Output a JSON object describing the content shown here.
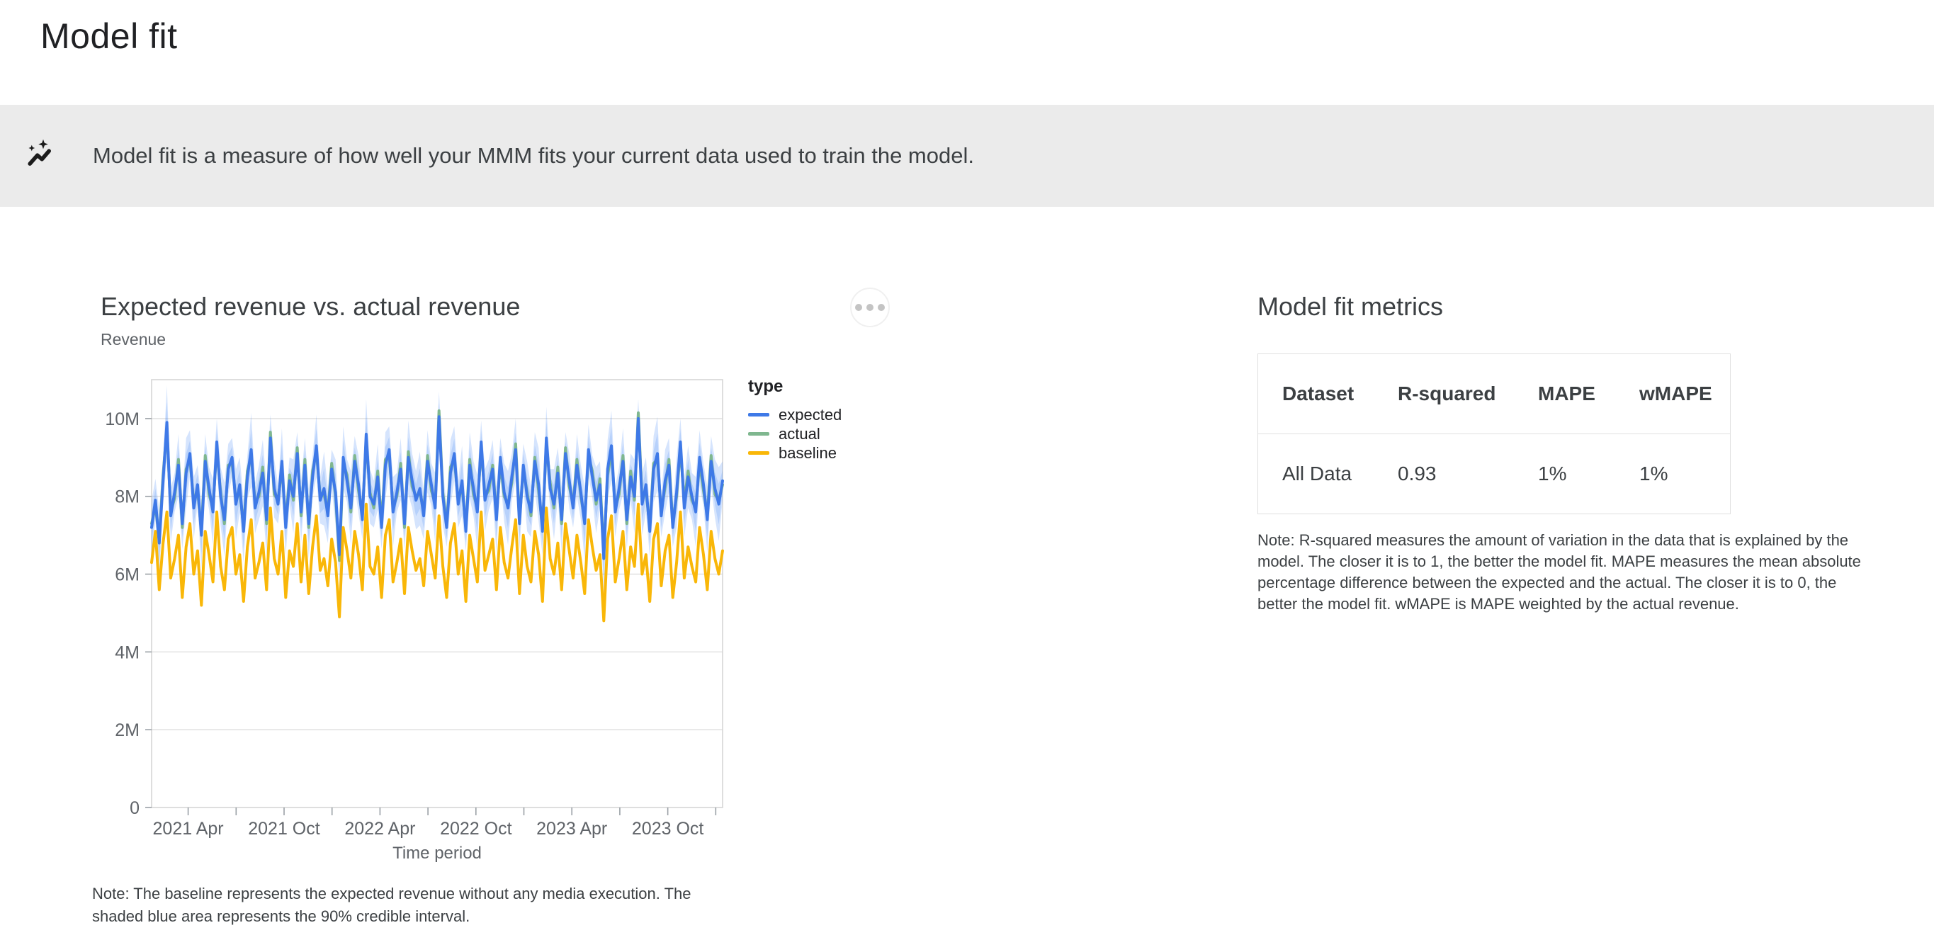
{
  "page": {
    "title": "Model fit"
  },
  "banner": {
    "icon": "auto-graph-icon",
    "text": "Model fit is a measure of how well your MMM fits your current data used to train the model."
  },
  "chart_card": {
    "title": "Expected revenue vs. actual revenue",
    "y_axis_title": "Revenue",
    "menu_label": "more options",
    "note": "Note: The baseline represents the expected revenue without any media execution. The shaded blue area represents the 90% credible interval."
  },
  "metrics_card": {
    "title": "Model fit metrics",
    "table": {
      "headers": [
        "Dataset",
        "R-squared",
        "MAPE",
        "wMAPE"
      ],
      "rows": [
        [
          "All Data",
          "0.93",
          "1%",
          "1%"
        ]
      ]
    },
    "note": "Note: R-squared measures the amount of variation in the data that is explained by the model. The closer it is to 1, the better the model fit. MAPE measures the mean absolute percentage difference between the expected and the actual. The closer it is to 0, the better the model fit. wMAPE is MAPE weighted by the actual revenue."
  },
  "chart_data": {
    "type": "line",
    "title": "Expected revenue vs. actual revenue",
    "xlabel": "Time period",
    "ylabel": "Revenue",
    "unit": "millions",
    "ylim": [
      0,
      11
    ],
    "grid": true,
    "legend_position": "right",
    "legend_title": "type",
    "yticks": [
      {
        "v": 0,
        "label": "0"
      },
      {
        "v": 2,
        "label": "2M"
      },
      {
        "v": 4,
        "label": "4M"
      },
      {
        "v": 6,
        "label": "6M"
      },
      {
        "v": 8,
        "label": "8M"
      },
      {
        "v": 10,
        "label": "10M"
      }
    ],
    "xticks": [
      {
        "f": 0.064,
        "label": "2021 Apr"
      },
      {
        "f": 0.148,
        "label": ""
      },
      {
        "f": 0.232,
        "label": "2021 Oct"
      },
      {
        "f": 0.316,
        "label": ""
      },
      {
        "f": 0.4,
        "label": "2022 Apr"
      },
      {
        "f": 0.484,
        "label": ""
      },
      {
        "f": 0.568,
        "label": "2022 Oct"
      },
      {
        "f": 0.652,
        "label": ""
      },
      {
        "f": 0.736,
        "label": "2023 Apr"
      },
      {
        "f": 0.82,
        "label": ""
      },
      {
        "f": 0.904,
        "label": "2023 Oct"
      },
      {
        "f": 0.988,
        "label": ""
      }
    ],
    "series": [
      {
        "name": "expected",
        "color": "#3E79E7",
        "values": [
          7.2,
          7.9,
          6.8,
          8.4,
          9.9,
          7.5,
          8.1,
          8.8,
          7.3,
          8.6,
          9.1,
          7.7,
          8.3,
          7.0,
          8.9,
          8.2,
          7.6,
          9.4,
          8.0,
          7.4,
          8.7,
          9.0,
          7.8,
          8.3,
          7.1,
          8.5,
          9.2,
          7.7,
          8.1,
          8.6,
          7.4,
          9.5,
          8.2,
          7.8,
          8.9,
          7.2,
          8.4,
          8.0,
          9.1,
          7.6,
          8.8,
          7.3,
          8.5,
          9.3,
          7.9,
          8.2,
          7.5,
          8.7,
          8.1,
          6.5,
          9.0,
          8.4,
          7.7,
          8.9,
          8.3,
          7.4,
          9.6,
          8.0,
          7.8,
          8.5,
          7.2,
          8.8,
          9.2,
          7.6,
          8.1,
          8.7,
          7.3,
          9.0,
          8.4,
          7.9,
          8.2,
          7.5,
          8.9,
          8.3,
          7.7,
          10.05,
          8.0,
          7.2,
          8.6,
          9.1,
          7.8,
          8.4,
          7.1,
          8.8,
          8.2,
          7.6,
          9.4,
          7.9,
          8.3,
          8.7,
          7.4,
          9.0,
          8.1,
          7.7,
          8.5,
          9.2,
          7.3,
          8.8,
          8.0,
          7.6,
          8.9,
          8.3,
          7.1,
          9.5,
          8.2,
          7.8,
          8.6,
          7.4,
          9.1,
          8.4,
          7.7,
          8.8,
          8.1,
          7.3,
          9.2,
          8.5,
          7.9,
          8.3,
          6.4,
          8.7,
          9.3,
          7.6,
          8.2,
          8.9,
          7.4,
          8.5,
          8.0,
          10.0,
          7.8,
          8.3,
          7.1,
          8.7,
          9.1,
          7.5,
          8.4,
          8.8,
          7.2,
          8.1,
          9.4,
          7.7,
          8.5,
          8.0,
          7.6,
          9.0,
          8.3,
          7.4,
          8.9,
          8.2,
          7.8,
          8.4
        ]
      },
      {
        "name": "actual",
        "color": "#7FB78F",
        "values": [
          7.3,
          7.75,
          6.9,
          8.55,
          9.75,
          7.6,
          7.95,
          8.95,
          7.2,
          8.7,
          8.95,
          7.85,
          8.15,
          7.1,
          9.05,
          8.05,
          7.7,
          9.25,
          8.1,
          7.3,
          8.8,
          8.85,
          7.9,
          8.15,
          7.2,
          8.65,
          9.05,
          7.85,
          8.0,
          8.75,
          7.3,
          9.65,
          8.05,
          7.9,
          8.75,
          7.3,
          8.55,
          7.9,
          9.25,
          7.5,
          8.95,
          7.2,
          8.65,
          9.15,
          8.0,
          8.05,
          7.6,
          8.85,
          8.0,
          6.35,
          8.85,
          8.55,
          7.6,
          9.05,
          8.15,
          7.5,
          9.45,
          8.1,
          7.7,
          8.65,
          7.3,
          8.95,
          9.05,
          7.7,
          8.0,
          8.85,
          7.2,
          9.15,
          8.25,
          8.0,
          8.1,
          7.6,
          9.05,
          8.15,
          7.8,
          10.2,
          8.1,
          7.3,
          8.75,
          8.95,
          7.9,
          8.25,
          7.2,
          8.95,
          8.05,
          7.7,
          9.25,
          8.0,
          8.15,
          8.8,
          7.5,
          8.85,
          8.0,
          7.8,
          8.35,
          9.35,
          7.4,
          8.7,
          8.1,
          7.5,
          9.0,
          8.15,
          7.2,
          9.35,
          8.35,
          7.7,
          8.75,
          7.3,
          9.25,
          8.25,
          7.8,
          8.95,
          8.0,
          7.4,
          9.05,
          8.65,
          7.8,
          8.45,
          6.55,
          8.55,
          9.15,
          7.7,
          8.05,
          9.05,
          7.3,
          8.65,
          7.9,
          10.15,
          7.9,
          8.15,
          7.2,
          8.85,
          8.95,
          7.6,
          8.25,
          8.95,
          7.3,
          8.0,
          9.25,
          7.85,
          8.65,
          7.9,
          7.7,
          8.85,
          8.15,
          7.5,
          9.05,
          8.05,
          7.9,
          8.3
        ]
      },
      {
        "name": "baseline",
        "color": "#F9B708",
        "values": [
          6.3,
          7.1,
          5.6,
          6.8,
          7.6,
          5.9,
          6.4,
          7.0,
          5.4,
          6.7,
          7.3,
          6.0,
          6.6,
          5.2,
          7.1,
          6.5,
          5.8,
          7.6,
          6.2,
          5.6,
          6.9,
          7.2,
          6.0,
          6.5,
          5.3,
          6.7,
          7.4,
          5.9,
          6.3,
          6.8,
          5.6,
          7.7,
          6.4,
          6.0,
          7.1,
          5.4,
          6.6,
          6.2,
          7.3,
          5.8,
          7.0,
          5.5,
          6.7,
          7.5,
          6.1,
          6.4,
          5.7,
          6.9,
          6.3,
          4.9,
          7.2,
          6.6,
          5.9,
          7.1,
          6.5,
          5.6,
          7.8,
          6.2,
          6.0,
          6.7,
          5.4,
          7.0,
          7.4,
          5.8,
          6.3,
          6.9,
          5.5,
          7.2,
          6.6,
          6.1,
          6.4,
          5.7,
          7.1,
          6.5,
          5.9,
          7.5,
          6.2,
          5.4,
          6.8,
          7.3,
          6.0,
          6.6,
          5.3,
          7.0,
          6.4,
          5.8,
          7.6,
          6.1,
          6.5,
          6.9,
          5.6,
          7.2,
          6.3,
          5.9,
          6.7,
          7.4,
          5.5,
          7.0,
          6.2,
          5.8,
          7.1,
          6.5,
          5.3,
          7.7,
          6.4,
          6.0,
          6.8,
          5.6,
          7.3,
          6.6,
          5.9,
          7.0,
          6.3,
          5.5,
          7.4,
          6.7,
          6.1,
          6.5,
          4.8,
          6.9,
          7.5,
          5.8,
          6.4,
          7.1,
          5.6,
          6.7,
          6.2,
          7.8,
          6.0,
          6.5,
          5.3,
          6.9,
          7.3,
          5.7,
          6.6,
          7.0,
          5.4,
          6.3,
          7.6,
          5.9,
          6.7,
          6.2,
          5.8,
          7.2,
          6.5,
          5.6,
          7.1,
          6.4,
          6.0,
          6.6
        ]
      }
    ],
    "credible_interval": {
      "level": "90%",
      "around": "expected",
      "color": "#4285F4",
      "outer_opacity": 0.22,
      "inner_opacity": 0.2,
      "halfwidth": [
        0.7,
        0.55,
        0.85,
        0.6,
        0.95,
        0.7,
        0.5,
        0.8,
        0.65,
        0.9,
        0.6,
        0.8,
        0.5,
        0.9,
        0.7,
        0.55,
        0.85,
        0.6,
        0.75,
        0.95,
        0.65,
        0.5,
        0.9,
        0.7,
        0.8,
        0.55,
        0.95,
        0.65,
        0.7,
        0.85,
        0.9,
        0.6,
        0.75,
        0.5,
        0.85,
        0.7,
        0.6,
        0.95,
        0.55,
        0.8,
        0.7,
        0.9,
        0.55,
        0.8,
        0.6,
        0.95,
        0.7,
        0.5,
        0.85,
        0.65,
        0.8,
        0.55,
        0.95,
        0.65,
        0.75,
        0.5,
        0.9,
        0.7,
        0.6,
        0.85,
        0.55,
        0.85,
        0.6,
        0.9,
        0.5,
        0.8,
        0.65,
        0.95,
        0.7,
        0.75,
        0.95,
        0.6,
        0.8,
        0.55,
        0.9,
        0.65,
        0.75,
        0.5,
        0.85,
        0.7,
        0.6,
        0.9,
        0.5,
        0.85,
        0.7,
        0.95,
        0.55,
        0.8,
        0.65,
        0.75,
        0.85,
        0.5,
        0.75,
        0.95,
        0.6,
        0.8,
        0.7,
        0.55,
        0.9,
        0.65,
        0.75,
        0.95,
        0.6,
        0.8,
        0.5,
        0.9,
        0.65,
        0.85,
        0.55,
        0.7,
        0.5,
        0.8,
        0.7,
        0.95,
        0.65,
        0.55,
        0.85,
        0.6,
        0.9,
        0.75,
        0.9,
        0.65,
        0.55,
        0.85,
        0.75,
        0.6,
        0.95,
        0.5,
        0.8,
        0.7,
        0.65,
        0.85,
        0.95,
        0.55,
        0.8,
        0.7,
        0.5,
        0.9,
        0.6,
        0.75,
        0.8,
        0.6,
        0.9,
        0.7,
        0.55,
        0.85,
        0.65,
        0.75,
        0.95,
        0.5
      ]
    }
  }
}
